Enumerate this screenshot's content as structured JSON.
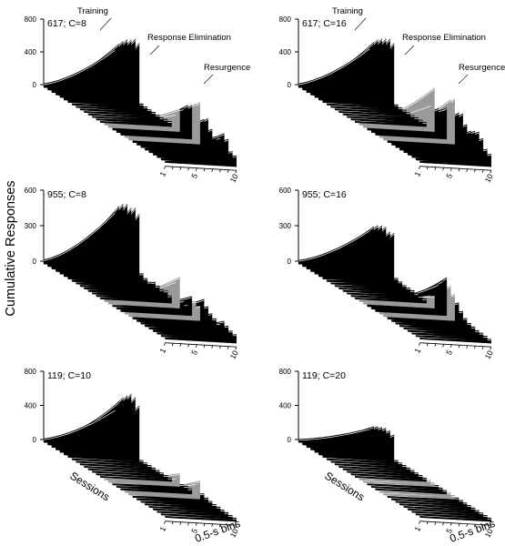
{
  "figure": {
    "y_axis_label": "Cumulative Responses"
  },
  "colors": {
    "training": "#000000",
    "elimination": "#000000",
    "resurgence": "#9a9a9a",
    "trace": "#ffffff",
    "axis": "#000000",
    "background": "#ffffff"
  },
  "chart_data": [
    {
      "type": "area",
      "panel_label": "617; C=8",
      "yticks": [
        0,
        400,
        800
      ],
      "ylim": [
        0,
        800
      ],
      "xticks": [
        "1",
        "5",
        "10"
      ],
      "x_values": [
        1,
        2,
        3,
        4,
        5,
        6,
        7,
        8,
        9,
        10
      ],
      "annotations": [
        "Training",
        "Response Elimination",
        "Resurgence"
      ],
      "sessions": [
        {
          "phase": "training",
          "final": 480
        },
        {
          "phase": "training",
          "final": 580
        },
        {
          "phase": "training",
          "final": 640
        },
        {
          "phase": "training",
          "final": 690
        },
        {
          "phase": "training",
          "final": 720
        },
        {
          "phase": "training",
          "final": 760
        },
        {
          "phase": "training",
          "final": 740
        },
        {
          "phase": "elimination",
          "final": 30
        },
        {
          "phase": "elimination",
          "final": 25
        },
        {
          "phase": "elimination",
          "final": 20
        },
        {
          "phase": "elimination",
          "final": 20
        },
        {
          "phase": "elimination",
          "final": 15
        },
        {
          "phase": "elimination",
          "final": 15
        },
        {
          "phase": "elimination",
          "final": 25
        },
        {
          "phase": "elimination",
          "final": 30
        },
        {
          "phase": "resurgence",
          "final": 150
        },
        {
          "phase": "resurgence",
          "final": 240
        },
        {
          "phase": "elimination",
          "final": 280
        },
        {
          "phase": "elimination",
          "final": 350
        },
        {
          "phase": "elimination",
          "final": 380
        },
        {
          "phase": "resurgence",
          "final": 430
        },
        {
          "phase": "resurgence",
          "final": 480
        },
        {
          "phase": "elimination",
          "final": 300
        },
        {
          "phase": "elimination",
          "final": 340
        },
        {
          "phase": "elimination",
          "final": 240
        },
        {
          "phase": "elimination",
          "final": 180
        },
        {
          "phase": "elimination",
          "final": 200
        },
        {
          "phase": "elimination",
          "final": 280
        },
        {
          "phase": "elimination",
          "final": 240
        },
        {
          "phase": "elimination",
          "final": 120
        },
        {
          "phase": "elimination",
          "final": 100
        }
      ]
    },
    {
      "type": "area",
      "panel_label": "617; C=16",
      "yticks": [
        0,
        400,
        800
      ],
      "ylim": [
        0,
        800
      ],
      "xticks": [
        "1",
        "5",
        "10"
      ],
      "x_values": [
        1,
        2,
        3,
        4,
        5,
        6,
        7,
        8,
        9,
        10
      ],
      "annotations": [
        "Training",
        "Response Elimination",
        "Resurgence"
      ],
      "sessions": [
        {
          "phase": "training",
          "final": 500
        },
        {
          "phase": "training",
          "final": 600
        },
        {
          "phase": "training",
          "final": 660
        },
        {
          "phase": "training",
          "final": 700
        },
        {
          "phase": "training",
          "final": 730
        },
        {
          "phase": "training",
          "final": 760
        },
        {
          "phase": "training",
          "final": 740
        },
        {
          "phase": "elimination",
          "final": 20
        },
        {
          "phase": "elimination",
          "final": 15
        },
        {
          "phase": "elimination",
          "final": 15
        },
        {
          "phase": "elimination",
          "final": 15
        },
        {
          "phase": "elimination",
          "final": 10
        },
        {
          "phase": "elimination",
          "final": 15
        },
        {
          "phase": "elimination",
          "final": 15
        },
        {
          "phase": "elimination",
          "final": 20
        },
        {
          "phase": "resurgence",
          "final": 260
        },
        {
          "phase": "resurgence",
          "final": 500
        },
        {
          "phase": "elimination",
          "final": 280
        },
        {
          "phase": "elimination",
          "final": 300
        },
        {
          "phase": "elimination",
          "final": 350
        },
        {
          "phase": "resurgence",
          "final": 480
        },
        {
          "phase": "resurgence",
          "final": 520
        },
        {
          "phase": "elimination",
          "final": 380
        },
        {
          "phase": "elimination",
          "final": 400
        },
        {
          "phase": "elimination",
          "final": 300
        },
        {
          "phase": "elimination",
          "final": 250
        },
        {
          "phase": "elimination",
          "final": 280
        },
        {
          "phase": "elimination",
          "final": 300
        },
        {
          "phase": "elimination",
          "final": 250
        },
        {
          "phase": "elimination",
          "final": 150
        },
        {
          "phase": "elimination",
          "final": 120
        }
      ]
    },
    {
      "type": "area",
      "panel_label": "955; C=8",
      "yticks": [
        0,
        300,
        600
      ],
      "ylim": [
        0,
        600
      ],
      "xticks": [
        "1",
        "5",
        "10"
      ],
      "x_values": [
        1,
        2,
        3,
        4,
        5,
        6,
        7,
        8,
        9,
        10
      ],
      "annotations": [],
      "sessions": [
        {
          "phase": "training",
          "final": 450
        },
        {
          "phase": "training",
          "final": 520
        },
        {
          "phase": "training",
          "final": 560
        },
        {
          "phase": "training",
          "final": 580
        },
        {
          "phase": "training",
          "final": 570
        },
        {
          "phase": "training",
          "final": 590
        },
        {
          "phase": "training",
          "final": 560
        },
        {
          "phase": "elimination",
          "final": 80
        },
        {
          "phase": "elimination",
          "final": 60
        },
        {
          "phase": "elimination",
          "final": 50
        },
        {
          "phase": "elimination",
          "final": 70
        },
        {
          "phase": "elimination",
          "final": 60
        },
        {
          "phase": "elimination",
          "final": 50
        },
        {
          "phase": "elimination",
          "final": 60
        },
        {
          "phase": "elimination",
          "final": 40
        },
        {
          "phase": "resurgence",
          "final": 180
        },
        {
          "phase": "resurgence",
          "final": 240
        },
        {
          "phase": "elimination",
          "final": 60
        },
        {
          "phase": "elimination",
          "final": 50
        },
        {
          "phase": "elimination",
          "final": 140
        },
        {
          "phase": "resurgence",
          "final": 120
        },
        {
          "phase": "resurgence",
          "final": 100
        },
        {
          "phase": "elimination",
          "final": 180
        },
        {
          "phase": "elimination",
          "final": 140
        },
        {
          "phase": "elimination",
          "final": 100
        },
        {
          "phase": "elimination",
          "final": 80
        },
        {
          "phase": "elimination",
          "final": 60
        },
        {
          "phase": "elimination",
          "final": 100
        },
        {
          "phase": "elimination",
          "final": 80
        },
        {
          "phase": "elimination",
          "final": 60
        },
        {
          "phase": "elimination",
          "final": 50
        }
      ]
    },
    {
      "type": "area",
      "panel_label": "955; C=16",
      "yticks": [
        0,
        300,
        600
      ],
      "ylim": [
        0,
        600
      ],
      "xticks": [
        "1",
        "5",
        "10"
      ],
      "x_values": [
        1,
        2,
        3,
        4,
        5,
        6,
        7,
        8,
        9,
        10
      ],
      "annotations": [],
      "sessions": [
        {
          "phase": "training",
          "final": 300
        },
        {
          "phase": "training",
          "final": 350
        },
        {
          "phase": "training",
          "final": 380
        },
        {
          "phase": "training",
          "final": 400
        },
        {
          "phase": "training",
          "final": 410
        },
        {
          "phase": "training",
          "final": 390
        },
        {
          "phase": "training",
          "final": 400
        },
        {
          "phase": "elimination",
          "final": 40
        },
        {
          "phase": "elimination",
          "final": 30
        },
        {
          "phase": "elimination",
          "final": 20
        },
        {
          "phase": "elimination",
          "final": 20
        },
        {
          "phase": "elimination",
          "final": 20
        },
        {
          "phase": "elimination",
          "final": 15
        },
        {
          "phase": "elimination",
          "final": 15
        },
        {
          "phase": "elimination",
          "final": 15
        },
        {
          "phase": "resurgence",
          "final": 60
        },
        {
          "phase": "resurgence",
          "final": 80
        },
        {
          "phase": "elimination",
          "final": 200
        },
        {
          "phase": "elimination",
          "final": 250
        },
        {
          "phase": "elimination",
          "final": 300
        },
        {
          "phase": "resurgence",
          "final": 250
        },
        {
          "phase": "resurgence",
          "final": 200
        },
        {
          "phase": "elimination",
          "final": 150
        },
        {
          "phase": "elimination",
          "final": 100
        },
        {
          "phase": "elimination",
          "final": 60
        },
        {
          "phase": "elimination",
          "final": 40
        },
        {
          "phase": "elimination",
          "final": 30
        },
        {
          "phase": "elimination",
          "final": 20
        },
        {
          "phase": "elimination",
          "final": 20
        },
        {
          "phase": "elimination",
          "final": 15
        },
        {
          "phase": "elimination",
          "final": 10
        }
      ]
    },
    {
      "type": "area",
      "panel_label": "119; C=10",
      "yticks": [
        0,
        400,
        800
      ],
      "ylim": [
        0,
        800
      ],
      "xticks": [
        "1",
        "5",
        "10"
      ],
      "x_values": [
        1,
        2,
        3,
        4,
        5,
        6,
        7,
        8,
        9,
        10
      ],
      "xlabel": "0.5-s bins",
      "zlabel": "Sessions",
      "annotations": [],
      "sessions": [
        {
          "phase": "training",
          "final": 400
        },
        {
          "phase": "training",
          "final": 520
        },
        {
          "phase": "training",
          "final": 600
        },
        {
          "phase": "training",
          "final": 650
        },
        {
          "phase": "training",
          "final": 700
        },
        {
          "phase": "training",
          "final": 690
        },
        {
          "phase": "training",
          "final": 620
        },
        {
          "phase": "elimination",
          "final": 10
        },
        {
          "phase": "elimination",
          "final": 10
        },
        {
          "phase": "elimination",
          "final": 10
        },
        {
          "phase": "elimination",
          "final": 10
        },
        {
          "phase": "elimination",
          "final": 10
        },
        {
          "phase": "elimination",
          "final": 10
        },
        {
          "phase": "elimination",
          "final": 10
        },
        {
          "phase": "elimination",
          "final": 10
        },
        {
          "phase": "resurgence",
          "final": 40
        },
        {
          "phase": "resurgence",
          "final": 120
        },
        {
          "phase": "elimination",
          "final": 20
        },
        {
          "phase": "elimination",
          "final": 30
        },
        {
          "phase": "elimination",
          "final": 30
        },
        {
          "phase": "resurgence",
          "final": 120
        },
        {
          "phase": "resurgence",
          "final": 180
        },
        {
          "phase": "elimination",
          "final": 60
        },
        {
          "phase": "elimination",
          "final": 40
        },
        {
          "phase": "elimination",
          "final": 30
        },
        {
          "phase": "elimination",
          "final": 20
        },
        {
          "phase": "elimination",
          "final": 20
        },
        {
          "phase": "elimination",
          "final": 15
        },
        {
          "phase": "elimination",
          "final": 15
        },
        {
          "phase": "elimination",
          "final": 10
        },
        {
          "phase": "elimination",
          "final": 10
        }
      ]
    },
    {
      "type": "area",
      "panel_label": "119; C=20",
      "yticks": [
        0,
        400,
        800
      ],
      "ylim": [
        0,
        800
      ],
      "xticks": [
        "1",
        "5",
        "10"
      ],
      "x_values": [
        1,
        2,
        3,
        4,
        5,
        6,
        7,
        8,
        9,
        10
      ],
      "xlabel": "0.5-s bins",
      "zlabel": "Sessions",
      "annotations": [],
      "sessions": [
        {
          "phase": "training",
          "final": 180
        },
        {
          "phase": "training",
          "final": 230
        },
        {
          "phase": "training",
          "final": 260
        },
        {
          "phase": "training",
          "final": 280
        },
        {
          "phase": "training",
          "final": 300
        },
        {
          "phase": "training",
          "final": 300
        },
        {
          "phase": "training",
          "final": 280
        },
        {
          "phase": "elimination",
          "final": 10
        },
        {
          "phase": "elimination",
          "final": 10
        },
        {
          "phase": "elimination",
          "final": 10
        },
        {
          "phase": "elimination",
          "final": 10
        },
        {
          "phase": "elimination",
          "final": 10
        },
        {
          "phase": "elimination",
          "final": 10
        },
        {
          "phase": "elimination",
          "final": 10
        },
        {
          "phase": "elimination",
          "final": 10
        },
        {
          "phase": "resurgence",
          "final": 10
        },
        {
          "phase": "resurgence",
          "final": 10
        },
        {
          "phase": "elimination",
          "final": 10
        },
        {
          "phase": "elimination",
          "final": 10
        },
        {
          "phase": "elimination",
          "final": 10
        },
        {
          "phase": "resurgence",
          "final": 10
        },
        {
          "phase": "resurgence",
          "final": 10
        },
        {
          "phase": "elimination",
          "final": 10
        },
        {
          "phase": "elimination",
          "final": 10
        },
        {
          "phase": "elimination",
          "final": 10
        },
        {
          "phase": "elimination",
          "final": 10
        },
        {
          "phase": "elimination",
          "final": 10
        },
        {
          "phase": "elimination",
          "final": 10
        },
        {
          "phase": "elimination",
          "final": 10
        },
        {
          "phase": "elimination",
          "final": 10
        },
        {
          "phase": "elimination",
          "final": 10
        }
      ]
    }
  ]
}
